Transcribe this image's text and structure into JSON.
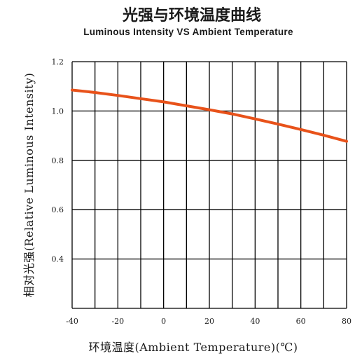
{
  "chart_data": {
    "type": "line",
    "title": "光强与环境温度曲线",
    "subtitle": "Luminous Intensity VS Ambient Temperature",
    "xlabel": "环境温度(Ambient Temperature)(℃)",
    "ylabel": "相对光强(Relative Luminous Intensity)",
    "xlim": [
      -40,
      80
    ],
    "ylim": [
      0.2,
      1.2
    ],
    "xticks": [
      -40,
      -20,
      0,
      20,
      40,
      60,
      80
    ],
    "xtick_labels": [
      "-40",
      "-20",
      "0",
      "20",
      "40",
      "60",
      "80"
    ],
    "yticks": [
      0.4,
      0.6,
      0.8,
      1.0,
      1.2
    ],
    "ytick_labels": [
      "0.4",
      "0.6",
      "0.8",
      "1.0",
      "1.2"
    ],
    "grid": true,
    "line_color": "#e8521a",
    "series": [
      {
        "x": [
          -40,
          -30,
          -20,
          -10,
          0,
          10,
          20,
          30,
          40,
          50,
          60,
          70,
          80
        ],
        "values": [
          1.085,
          1.075,
          1.063,
          1.05,
          1.037,
          1.021,
          1.005,
          0.988,
          0.968,
          0.947,
          0.925,
          0.902,
          0.877
        ]
      }
    ]
  }
}
